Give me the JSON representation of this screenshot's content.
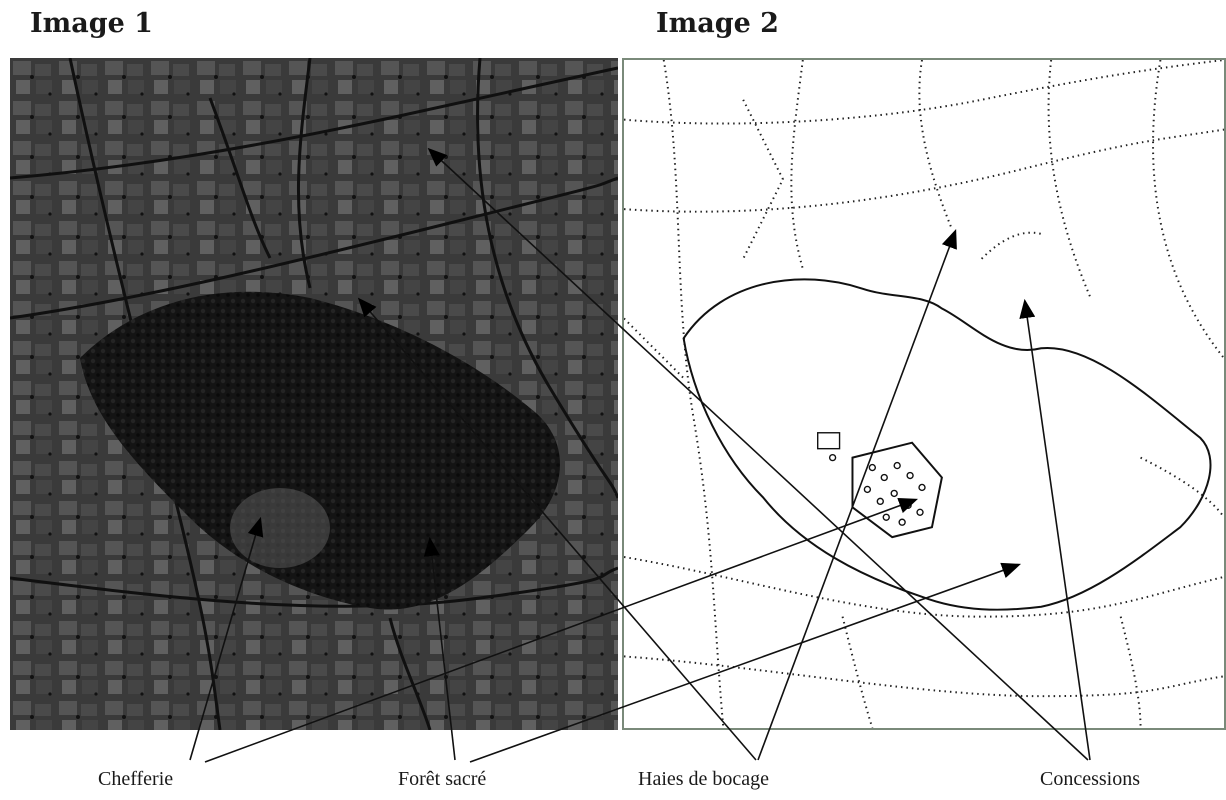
{
  "titles": {
    "image1": "Image 1",
    "image2": "Image 2"
  },
  "labels": {
    "chefferie": "Chefferie",
    "foret": "Forêt sacré",
    "haies": "Haies de bocage",
    "concessions": "Concessions"
  },
  "colors": {
    "photo_bg": "#2e2e2e",
    "forest": "#141414",
    "line": "#111111",
    "frame": "#7a8a7a"
  }
}
